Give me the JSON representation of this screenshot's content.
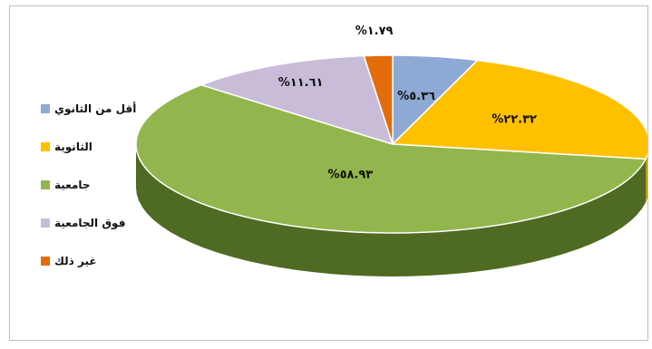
{
  "chart_data": {
    "type": "pie",
    "style": "3d",
    "categories": [
      "أقل من الثانوي",
      "الثانوية",
      "جامعية",
      "فوق الجامعية",
      "غير ذلك"
    ],
    "values": [
      5.36,
      22.32,
      58.93,
      11.61,
      1.79
    ],
    "labels": [
      "%٥.٣٦",
      "%٢٢.٣٢",
      "%٥٨.٩٣",
      "%١١.٦١",
      "%١.٧٩"
    ],
    "colors": [
      "#8EA9D4",
      "#FFC000",
      "#92B64D",
      "#C8BCD9",
      "#E46C0A"
    ],
    "side_colors": [
      "#6f8ab5",
      "#c59a00",
      "#4f6a22",
      "#9c8fb0",
      "#a94e07"
    ],
    "legend_position": "left"
  }
}
